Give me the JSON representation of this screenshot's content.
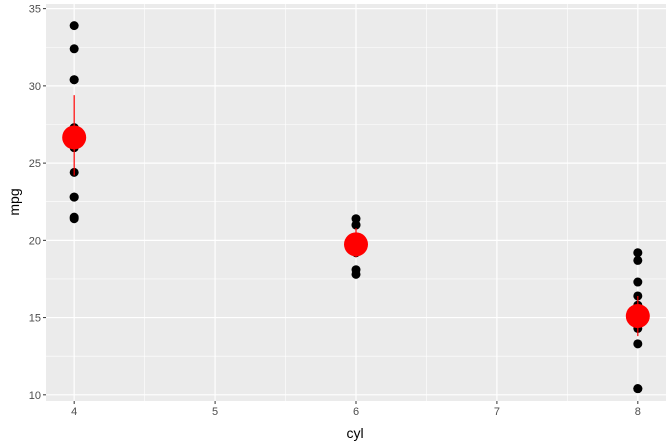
{
  "chart_data": {
    "type": "scatter",
    "xlabel": "cyl",
    "ylabel": "mpg",
    "xlim": [
      3.8,
      8.2
    ],
    "ylim": [
      9.6,
      35.3
    ],
    "xticks": [
      4,
      5,
      6,
      7,
      8
    ],
    "yticks": [
      10,
      15,
      20,
      25,
      30,
      35
    ],
    "grid": true,
    "points": {
      "color": "#000000",
      "data": [
        {
          "x": 4,
          "y": 22.8
        },
        {
          "x": 4,
          "y": 24.4
        },
        {
          "x": 4,
          "y": 22.8
        },
        {
          "x": 4,
          "y": 32.4
        },
        {
          "x": 4,
          "y": 30.4
        },
        {
          "x": 4,
          "y": 33.9
        },
        {
          "x": 4,
          "y": 21.5
        },
        {
          "x": 4,
          "y": 27.3
        },
        {
          "x": 4,
          "y": 26.0
        },
        {
          "x": 4,
          "y": 30.4
        },
        {
          "x": 4,
          "y": 21.4
        },
        {
          "x": 6,
          "y": 21.0
        },
        {
          "x": 6,
          "y": 21.0
        },
        {
          "x": 6,
          "y": 21.4
        },
        {
          "x": 6,
          "y": 18.1
        },
        {
          "x": 6,
          "y": 19.2
        },
        {
          "x": 6,
          "y": 17.8
        },
        {
          "x": 6,
          "y": 19.7
        },
        {
          "x": 8,
          "y": 18.7
        },
        {
          "x": 8,
          "y": 14.3
        },
        {
          "x": 8,
          "y": 16.4
        },
        {
          "x": 8,
          "y": 17.3
        },
        {
          "x": 8,
          "y": 15.2
        },
        {
          "x": 8,
          "y": 10.4
        },
        {
          "x": 8,
          "y": 10.4
        },
        {
          "x": 8,
          "y": 14.7
        },
        {
          "x": 8,
          "y": 15.5
        },
        {
          "x": 8,
          "y": 15.2
        },
        {
          "x": 8,
          "y": 13.3
        },
        {
          "x": 8,
          "y": 19.2
        },
        {
          "x": 8,
          "y": 15.8
        },
        {
          "x": 8,
          "y": 15.0
        }
      ]
    },
    "summary": {
      "color": "#ff0000",
      "data": [
        {
          "x": 4,
          "mean": 26.66,
          "ymin": 24.2,
          "ymax": 29.4
        },
        {
          "x": 6,
          "mean": 19.74,
          "ymin": 18.9,
          "ymax": 20.8
        },
        {
          "x": 8,
          "mean": 15.1,
          "ymin": 13.8,
          "ymax": 16.4
        }
      ]
    }
  }
}
